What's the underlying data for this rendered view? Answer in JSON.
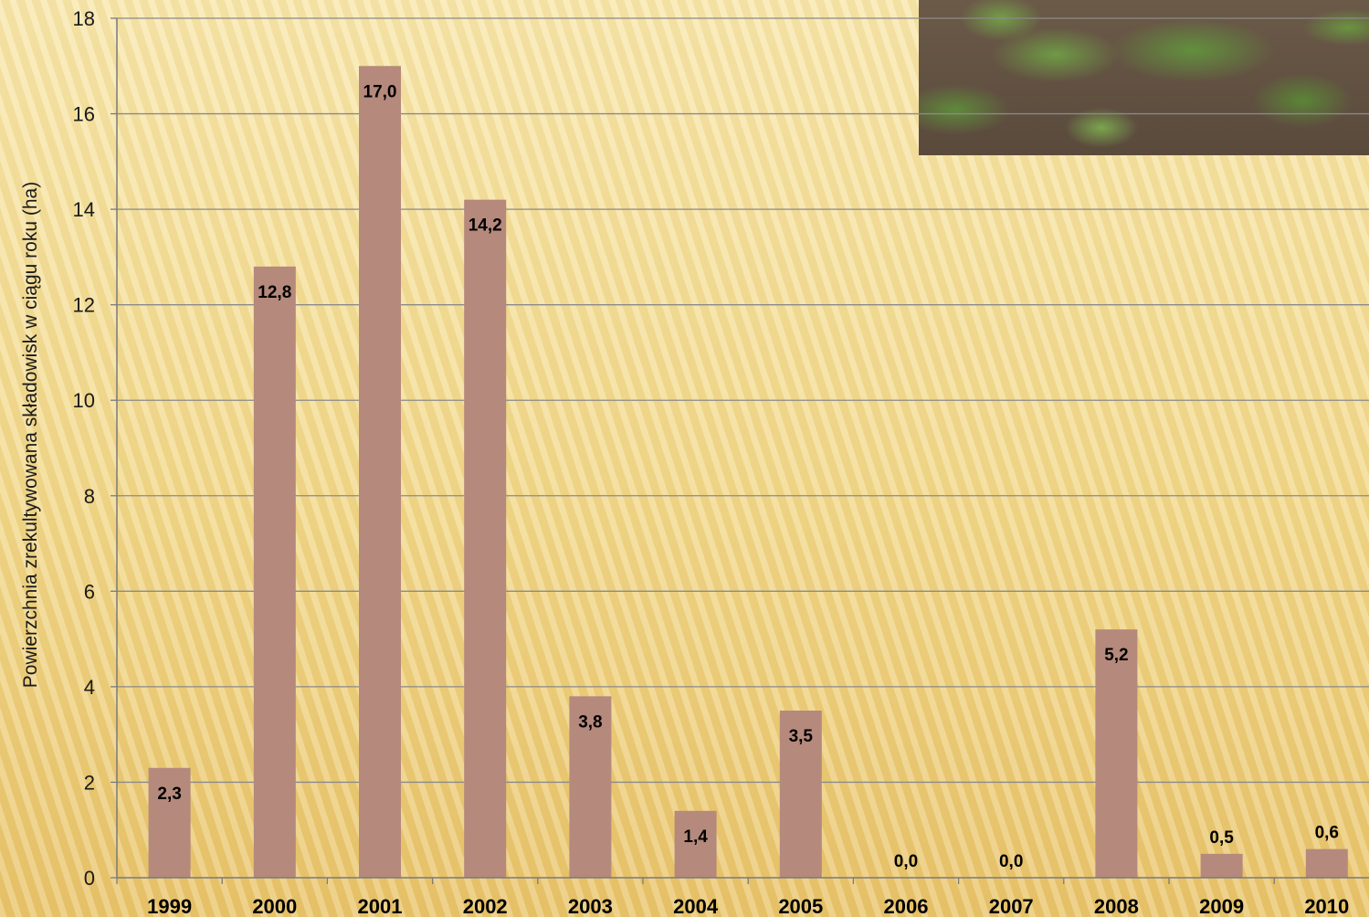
{
  "chart_data": {
    "type": "bar",
    "categories": [
      "1999",
      "2000",
      "2001",
      "2002",
      "2003",
      "2004",
      "2005",
      "2006",
      "2007",
      "2008",
      "2009",
      "2010"
    ],
    "values": [
      2.3,
      12.8,
      17.0,
      14.2,
      3.8,
      1.4,
      3.5,
      0.0,
      0.0,
      5.2,
      0.5,
      0.6
    ],
    "data_labels": [
      "2,3",
      "12,8",
      "17,0",
      "14,2",
      "3,8",
      "1,4",
      "3,5",
      "0,0",
      "0,0",
      "5,2",
      "0,5",
      "0,6"
    ],
    "ylabel": "Powierzchnia zrekultywowana składowisk w ciągu roku (ha)",
    "xlabel": "",
    "ylim": [
      0,
      18
    ],
    "yticks": [
      0,
      2,
      4,
      6,
      8,
      10,
      12,
      14,
      16,
      18
    ],
    "grid": true,
    "legend": "none",
    "colors": {
      "bar": "#b5897c",
      "grid": "#8a8a8a",
      "axis": "#7a7a7a",
      "text": "#000000"
    }
  }
}
